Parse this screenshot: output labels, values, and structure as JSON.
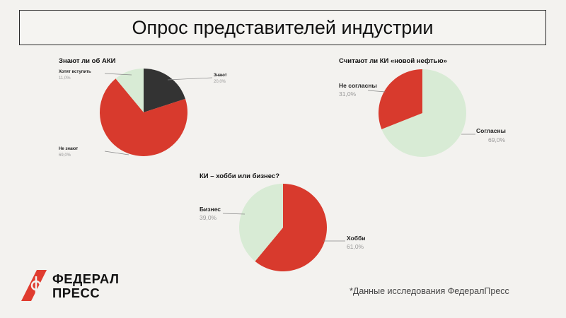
{
  "title": "Опрос представителей индустрии",
  "footnote": "*Данные исследования ФедералПресс",
  "logo": {
    "line1": "ФЕДЕРАЛ",
    "line2": "ПРЕСС",
    "brand_color": "#e03c2f"
  },
  "colors": {
    "red": "#d83a2d",
    "light_green": "#d8ebd5",
    "dark_gray": "#333333"
  },
  "chart_data": [
    {
      "type": "pie",
      "title": "Знают ли об АКИ",
      "slices": [
        {
          "label": "Знают",
          "value": 20.0,
          "display": "20,0%",
          "color": "#333333"
        },
        {
          "label": "Не знают",
          "value": 69.0,
          "display": "69,0%",
          "color": "#d83a2d"
        },
        {
          "label": "Хотят вступить",
          "value": 11.0,
          "display": "11,0%",
          "color": "#d8ebd5"
        }
      ]
    },
    {
      "type": "pie",
      "title": "Считают ли КИ «новой нефтью»",
      "slices": [
        {
          "label": "Согласны",
          "value": 69.0,
          "display": "69,0%",
          "color": "#d8ebd5"
        },
        {
          "label": "Не согласны",
          "value": 31.0,
          "display": "31,0%",
          "color": "#d83a2d"
        }
      ]
    },
    {
      "type": "pie",
      "title": "КИ – хобби или бизнес?",
      "slices": [
        {
          "label": "Хобби",
          "value": 61.0,
          "display": "61,0%",
          "color": "#d83a2d"
        },
        {
          "label": "Бизнес",
          "value": 39.0,
          "display": "39,0%",
          "color": "#d8ebd5"
        }
      ]
    }
  ]
}
